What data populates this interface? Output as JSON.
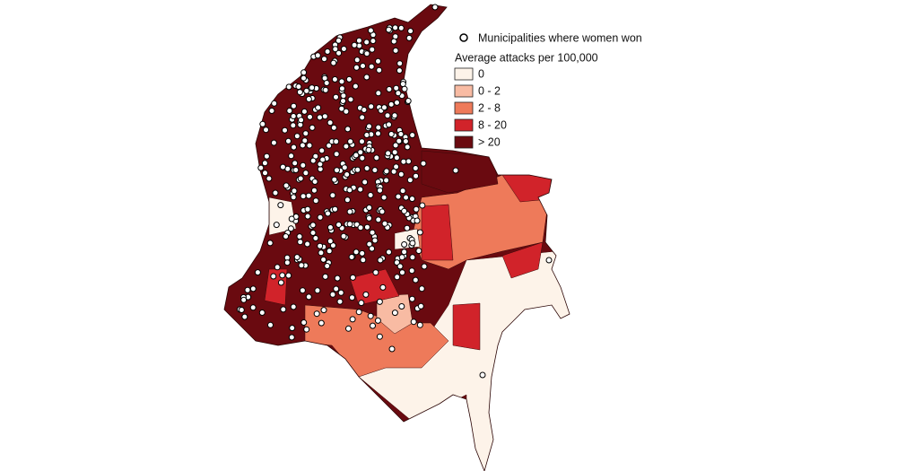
{
  "legend": {
    "points_label": "Municipalities where women won",
    "title": "Average attacks per 100,000",
    "classes": [
      {
        "label": "0",
        "color": "#fdf3e9"
      },
      {
        "label": "0 - 2",
        "color": "#f8bba3"
      },
      {
        "label": "2 - 8",
        "color": "#ee7a5a"
      },
      {
        "label": "8 - 20",
        "color": "#d1232a"
      },
      {
        "label": "> 20",
        "color": "#6a0a10"
      }
    ]
  }
}
